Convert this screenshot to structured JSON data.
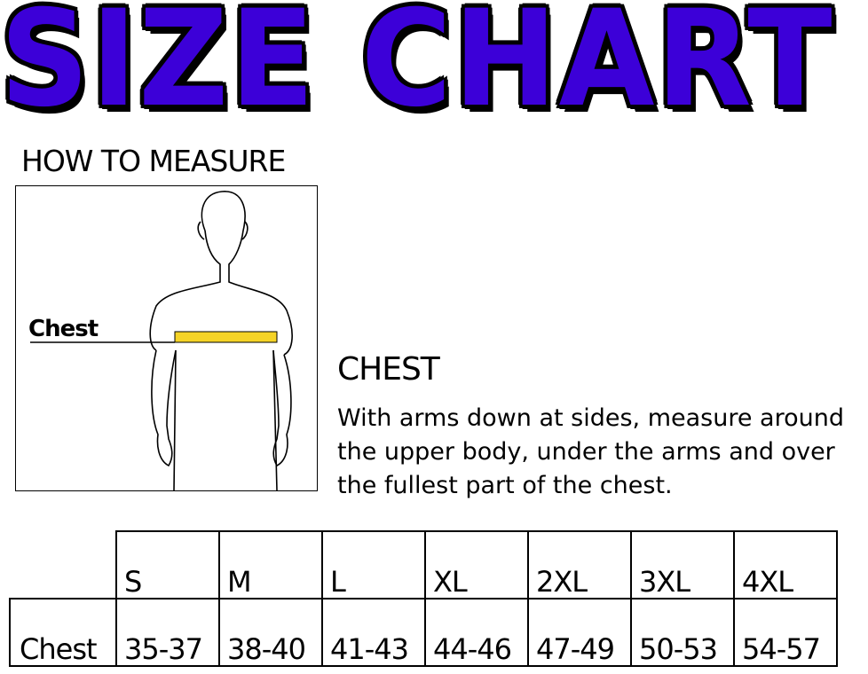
{
  "title": "SIZE CHART",
  "how_to_measure": {
    "heading": "HOW TO MEASURE",
    "figure_label": "Chest",
    "tape_color": "#f5d327"
  },
  "chest": {
    "heading": "CHEST",
    "description": "With arms down at sides, measure around the upper body, under the arms and over the fullest part of the chest."
  },
  "size_table": {
    "sizes": [
      "S",
      "M",
      "L",
      "XL",
      "2XL",
      "3XL",
      "4XL"
    ],
    "rows": [
      {
        "label": "Chest",
        "values": [
          "35-37",
          "38-40",
          "41-43",
          "44-46",
          "47-49",
          "50-53",
          "54-57"
        ]
      }
    ]
  },
  "colors": {
    "title_fill": "#3c00d8",
    "title_outline": "#000000"
  }
}
